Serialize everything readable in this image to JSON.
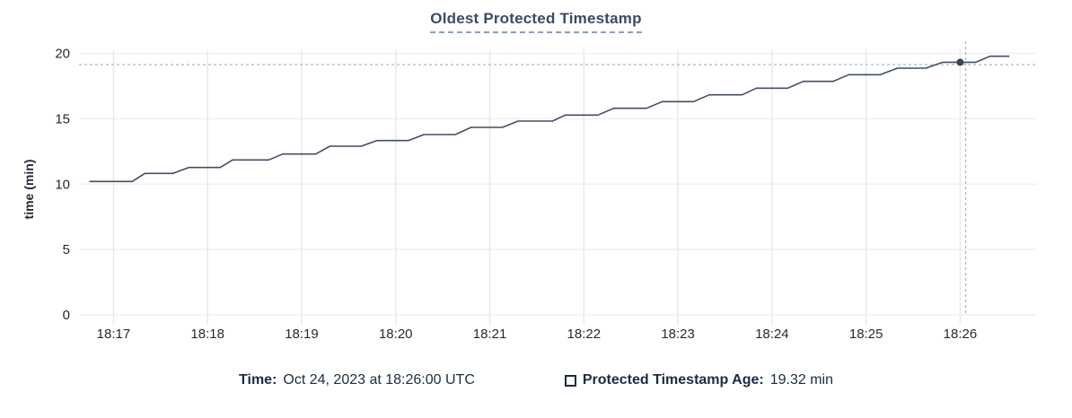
{
  "title": "Oldest Protected Timestamp",
  "colors": {
    "title": "#3b4a64",
    "title_underline": "#8ea0b5",
    "series_line": "#414e64",
    "hover_dot": "#394455",
    "crosshair": "#a7bac4",
    "grid_vertical": "#e9e9e9",
    "grid_horizontal": "#f1f1f1",
    "tick_text": "#242a35",
    "footer_text": "#1b2b45"
  },
  "chart_data": {
    "type": "line",
    "title": "Oldest Protected Timestamp",
    "xlabel": "",
    "ylabel": "time (min)",
    "ylim": [
      0,
      20
    ],
    "y_ticks": [
      0,
      5,
      10,
      15,
      20
    ],
    "x_domain_seconds_from_1817": [
      -22,
      589
    ],
    "x_ticks": [
      {
        "t": 0,
        "label": "18:17"
      },
      {
        "t": 60,
        "label": "18:18"
      },
      {
        "t": 120,
        "label": "18:19"
      },
      {
        "t": 180,
        "label": "18:20"
      },
      {
        "t": 240,
        "label": "18:21"
      },
      {
        "t": 300,
        "label": "18:22"
      },
      {
        "t": 360,
        "label": "18:23"
      },
      {
        "t": 420,
        "label": "18:24"
      },
      {
        "t": 480,
        "label": "18:25"
      },
      {
        "t": 540,
        "label": "18:26"
      }
    ],
    "grid": true,
    "legend_position": "bottom",
    "series": [
      {
        "name": "Protected Timestamp Age",
        "points": [
          [
            -15,
            10.2
          ],
          [
            12,
            10.2
          ],
          [
            20,
            10.82
          ],
          [
            38,
            10.82
          ],
          [
            48,
            11.27
          ],
          [
            68,
            11.27
          ],
          [
            76,
            11.85
          ],
          [
            99,
            11.85
          ],
          [
            108,
            12.3
          ],
          [
            129,
            12.3
          ],
          [
            138,
            12.9
          ],
          [
            158,
            12.9
          ],
          [
            168,
            13.33
          ],
          [
            188,
            13.33
          ],
          [
            198,
            13.79
          ],
          [
            218,
            13.79
          ],
          [
            228,
            14.34
          ],
          [
            248,
            14.34
          ],
          [
            258,
            14.82
          ],
          [
            280,
            14.82
          ],
          [
            288,
            15.28
          ],
          [
            309,
            15.28
          ],
          [
            319,
            15.8
          ],
          [
            340,
            15.8
          ],
          [
            350,
            16.31
          ],
          [
            370,
            16.31
          ],
          [
            380,
            16.83
          ],
          [
            401,
            16.83
          ],
          [
            410,
            17.34
          ],
          [
            430,
            17.34
          ],
          [
            440,
            17.86
          ],
          [
            459,
            17.86
          ],
          [
            469,
            18.37
          ],
          [
            489,
            18.37
          ],
          [
            500,
            18.87
          ],
          [
            518,
            18.87
          ],
          [
            529,
            19.32
          ],
          [
            550,
            19.32
          ],
          [
            559,
            19.78
          ],
          [
            571,
            19.78
          ]
        ]
      }
    ],
    "crosshair": {
      "mouse_t": 543.5,
      "mouse_value": 19.14,
      "hover_point_t": 540,
      "hover_point_value": 19.32
    }
  },
  "footer": {
    "time_label": "Time:",
    "time_value": "Oct 24, 2023 at 18:26:00 UTC",
    "series_label": "Protected Timestamp Age:",
    "series_value": "19.32 min"
  }
}
